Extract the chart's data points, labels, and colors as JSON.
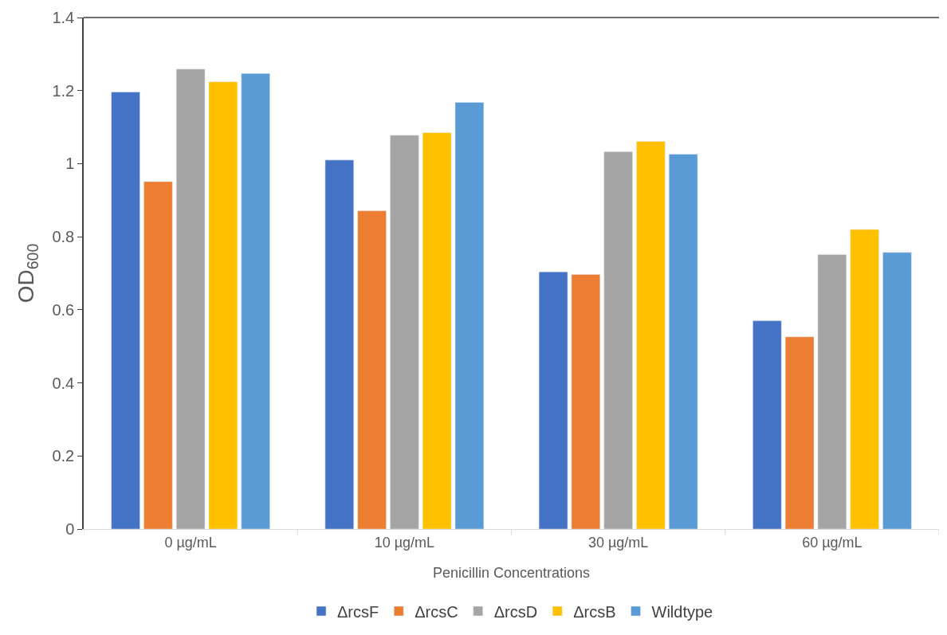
{
  "chart_data": {
    "type": "bar",
    "xlabel": "Penicillin Concentrations",
    "ylabel": "OD$_{600}$",
    "categories": [
      "0 µg/mL",
      "10 µg/mL",
      "30 µg/mL",
      "60 µg/mL"
    ],
    "series": [
      {
        "name": "ΔrcsF",
        "color": "#4472c4",
        "values": [
          1.196,
          1.01,
          0.704,
          0.57
        ]
      },
      {
        "name": "ΔrcsC",
        "color": "#ed7d31",
        "values": [
          0.951,
          0.871,
          0.697,
          0.526
        ]
      },
      {
        "name": "ΔrcsD",
        "color": "#a5a5a5",
        "values": [
          1.259,
          1.078,
          1.033,
          0.751
        ]
      },
      {
        "name": "ΔrcsB",
        "color": "#ffc000",
        "values": [
          1.224,
          1.085,
          1.061,
          0.82
        ]
      },
      {
        "name": "Wildtype",
        "color": "#5b9bd5",
        "values": [
          1.247,
          1.168,
          1.026,
          0.757
        ]
      }
    ],
    "ylim": [
      0,
      1.4
    ],
    "yticks": [
      0,
      0.2,
      0.4,
      0.6,
      0.8,
      1,
      1.2,
      1.4
    ],
    "legend": "bottom"
  }
}
